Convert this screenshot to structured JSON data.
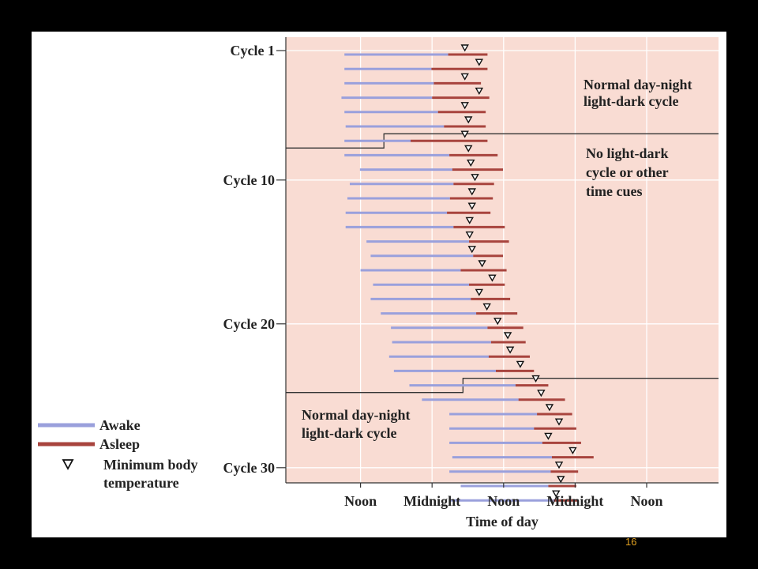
{
  "page_number": "16",
  "colors": {
    "awake": "#9aa0dc",
    "asleep": "#a8443e",
    "panel_bg": "#ffffff",
    "plot_bg": "#f9dcd3"
  },
  "legend": {
    "awake_label": "Awake",
    "asleep_label": "Asleep",
    "min_temp_label_line1": "Minimum body",
    "min_temp_label_line2": "temperature"
  },
  "regions": [
    {
      "line1": "Normal day-night",
      "line2": "light-dark cycle"
    },
    {
      "line1": "No light-dark",
      "line2": "cycle or other",
      "line3": "time cues"
    },
    {
      "line1": "Normal day-night",
      "line2": "light-dark cycle"
    }
  ],
  "chart_data": {
    "type": "gantt",
    "xlabel": "Time of day",
    "ylabel": "",
    "x_ticks": [
      {
        "hour": 12,
        "label": "Noon"
      },
      {
        "hour": 24,
        "label": "Midnight"
      },
      {
        "hour": 36,
        "label": "Noon"
      },
      {
        "hour": 48,
        "label": "Midnight"
      },
      {
        "hour": 60,
        "label": "Noon"
      }
    ],
    "xlim_hours": [
      0,
      72
    ],
    "y_ticks": [
      {
        "cycle": 1,
        "label": "Cycle 1"
      },
      {
        "cycle": 10,
        "label": "Cycle 10"
      },
      {
        "cycle": 20,
        "label": "Cycle 20"
      },
      {
        "cycle": 30,
        "label": "Cycle 30"
      }
    ],
    "ylim_cycles": [
      1,
      30
    ],
    "condition_boundaries_after_cycle": [
      7.5,
      24.5
    ],
    "series": [
      {
        "name": "Awake"
      },
      {
        "name": "Asleep"
      },
      {
        "name": "Minimum body temperature"
      }
    ],
    "cycles": [
      {
        "cycle": 1,
        "wake": 9.3,
        "sleep": 26.7,
        "end": 33.3,
        "min_temp": 29.5
      },
      {
        "cycle": 2,
        "wake": 9.3,
        "sleep": 23.9,
        "end": 33.3,
        "min_temp": 31.9
      },
      {
        "cycle": 3,
        "wake": 9.3,
        "sleep": 24.3,
        "end": 32.2,
        "min_temp": 29.5
      },
      {
        "cycle": 4,
        "wake": 8.8,
        "sleep": 24.0,
        "end": 33.6,
        "min_temp": 31.9
      },
      {
        "cycle": 5,
        "wake": 9.3,
        "sleep": 25.0,
        "end": 33.0,
        "min_temp": 29.5
      },
      {
        "cycle": 6,
        "wake": 9.5,
        "sleep": 26.0,
        "end": 33.0,
        "min_temp": 30.1
      },
      {
        "cycle": 7,
        "wake": 9.3,
        "sleep": 20.4,
        "end": 33.3,
        "min_temp": 29.5
      },
      {
        "cycle": 8,
        "wake": 9.3,
        "sleep": 26.9,
        "end": 35.0,
        "min_temp": 30.1
      },
      {
        "cycle": 9,
        "wake": 11.9,
        "sleep": 27.4,
        "end": 35.9,
        "min_temp": 30.5
      },
      {
        "cycle": 10,
        "wake": 10.2,
        "sleep": 27.6,
        "end": 34.4,
        "min_temp": 31.2
      },
      {
        "cycle": 11,
        "wake": 9.8,
        "sleep": 27.0,
        "end": 34.2,
        "min_temp": 30.7
      },
      {
        "cycle": 12,
        "wake": 9.5,
        "sleep": 26.5,
        "end": 33.8,
        "min_temp": 30.7
      },
      {
        "cycle": 13,
        "wake": 9.5,
        "sleep": 27.6,
        "end": 36.2,
        "min_temp": 30.3
      },
      {
        "cycle": 14,
        "wake": 13.0,
        "sleep": 30.2,
        "end": 36.9,
        "min_temp": 30.3
      },
      {
        "cycle": 15,
        "wake": 13.7,
        "sleep": 30.9,
        "end": 35.9,
        "min_temp": 30.7
      },
      {
        "cycle": 16,
        "wake": 12.0,
        "sleep": 28.8,
        "end": 36.5,
        "min_temp": 32.4
      },
      {
        "cycle": 17,
        "wake": 14.1,
        "sleep": 30.2,
        "end": 36.2,
        "min_temp": 34.1
      },
      {
        "cycle": 18,
        "wake": 13.7,
        "sleep": 30.5,
        "end": 37.1,
        "min_temp": 31.9
      },
      {
        "cycle": 19,
        "wake": 15.4,
        "sleep": 31.4,
        "end": 38.3,
        "min_temp": 33.2
      },
      {
        "cycle": 20,
        "wake": 17.1,
        "sleep": 33.3,
        "end": 39.3,
        "min_temp": 35.0
      },
      {
        "cycle": 21,
        "wake": 17.3,
        "sleep": 33.9,
        "end": 39.7,
        "min_temp": 36.7
      },
      {
        "cycle": 22,
        "wake": 16.8,
        "sleep": 33.5,
        "end": 40.4,
        "min_temp": 37.1
      },
      {
        "cycle": 23,
        "wake": 17.6,
        "sleep": 34.7,
        "end": 41.1,
        "min_temp": 38.8
      },
      {
        "cycle": 24,
        "wake": 20.2,
        "sleep": 38.0,
        "end": 43.5,
        "min_temp": 41.4
      },
      {
        "cycle": 25,
        "wake": 22.3,
        "sleep": 38.5,
        "end": 46.3,
        "min_temp": 42.3
      },
      {
        "cycle": 26,
        "wake": 26.9,
        "sleep": 41.6,
        "end": 47.5,
        "min_temp": 43.7
      },
      {
        "cycle": 27,
        "wake": 26.9,
        "sleep": 41.1,
        "end": 48.2,
        "min_temp": 45.3
      },
      {
        "cycle": 28,
        "wake": 26.9,
        "sleep": 42.5,
        "end": 49.0,
        "min_temp": 43.5
      },
      {
        "cycle": 29,
        "wake": 27.4,
        "sleep": 44.1,
        "end": 51.1,
        "min_temp": 47.6
      },
      {
        "cycle": 30,
        "wake": 26.9,
        "sleep": 43.9,
        "end": 48.5,
        "min_temp": 45.3
      },
      {
        "cycle": 31,
        "wake": 28.8,
        "sleep": 43.5,
        "end": 48.2,
        "min_temp": 45.6
      },
      {
        "cycle": 32,
        "wake": 26.9,
        "sleep": 44.4,
        "end": 48.5,
        "min_temp": 44.8
      }
    ]
  }
}
